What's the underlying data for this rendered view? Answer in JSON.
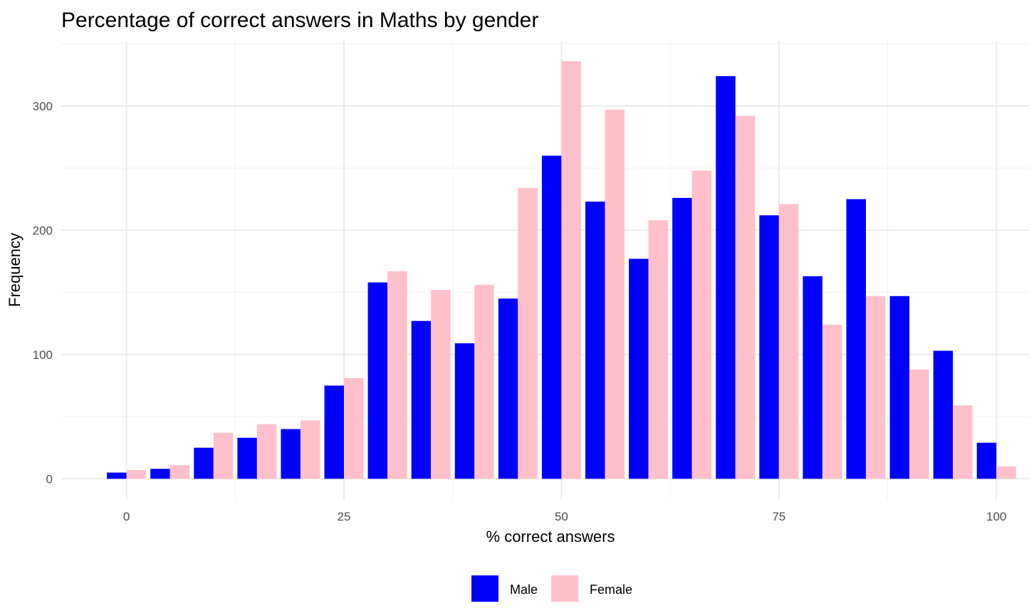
{
  "chart_data": {
    "type": "bar",
    "title": "Percentage of correct answers in Maths by gender",
    "xlabel": "% correct answers",
    "ylabel": "Frequency",
    "xlim": [
      -7.5,
      103.75
    ],
    "ylim": [
      -17,
      352
    ],
    "x_ticks": [
      0,
      25,
      50,
      75,
      100
    ],
    "y_ticks": [
      0,
      100,
      200,
      300
    ],
    "grid": true,
    "legend_position": "bottom",
    "bin_width": 5,
    "x": [
      0,
      5,
      10,
      15,
      20,
      25,
      30,
      35,
      40,
      45,
      50,
      55,
      60,
      65,
      70,
      75,
      80,
      85,
      90,
      95,
      100
    ],
    "series": [
      {
        "name": "Male",
        "color": "#0000ff",
        "values": [
          5,
          8,
          25,
          33,
          40,
          75,
          158,
          127,
          109,
          145,
          260,
          223,
          177,
          226,
          324,
          212,
          163,
          225,
          147,
          103,
          29
        ]
      },
      {
        "name": "Female",
        "color": "#ffc0cb",
        "values": [
          7,
          11,
          37,
          44,
          47,
          81,
          167,
          152,
          156,
          234,
          336,
          297,
          208,
          248,
          292,
          221,
          124,
          147,
          88,
          59,
          10
        ]
      }
    ]
  }
}
